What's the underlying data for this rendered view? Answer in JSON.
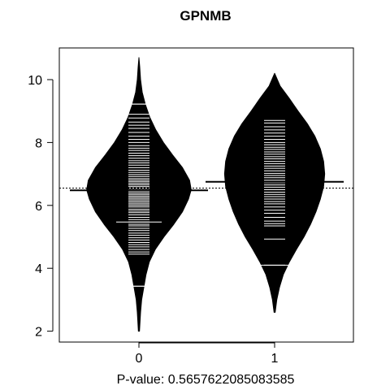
{
  "chart_data": {
    "type": "beanplot",
    "title": "GPNMB",
    "xlabel": "P-value: 0.5657622085083585",
    "ylabel": "",
    "categories": [
      "0",
      "1"
    ],
    "yticks": [
      2,
      4,
      6,
      8,
      10
    ],
    "ylim": [
      1.8,
      11.1
    ],
    "overall_mean": 6.55,
    "fill_color": "#000000",
    "line_color": "#ffffff",
    "beans": [
      {
        "group": "0",
        "mean": 6.48,
        "range": [
          2.0,
          10.7
        ],
        "density": [
          [
            2.0,
            0.01
          ],
          [
            2.6,
            0.03
          ],
          [
            3.0,
            0.05
          ],
          [
            3.4,
            0.09
          ],
          [
            3.8,
            0.13
          ],
          [
            4.2,
            0.19
          ],
          [
            4.6,
            0.3
          ],
          [
            5.0,
            0.46
          ],
          [
            5.4,
            0.64
          ],
          [
            5.8,
            0.8
          ],
          [
            6.2,
            0.91
          ],
          [
            6.5,
            0.96
          ],
          [
            6.8,
            0.93
          ],
          [
            7.2,
            0.8
          ],
          [
            7.6,
            0.62
          ],
          [
            8.0,
            0.45
          ],
          [
            8.4,
            0.31
          ],
          [
            8.8,
            0.2
          ],
          [
            9.2,
            0.12
          ],
          [
            9.6,
            0.06
          ],
          [
            10.0,
            0.03
          ],
          [
            10.4,
            0.015
          ],
          [
            10.7,
            0.0
          ]
        ],
        "observations": [
          3.43,
          4.45,
          4.52,
          4.6,
          4.68,
          4.75,
          4.82,
          4.9,
          4.97,
          5.05,
          5.12,
          5.2,
          5.27,
          5.35,
          5.4,
          5.47,
          5.55,
          5.62,
          5.7,
          5.77,
          5.82,
          5.88,
          5.95,
          6.0,
          6.05,
          6.1,
          6.15,
          6.2,
          6.25,
          6.3,
          6.35,
          6.4,
          6.45,
          6.5,
          6.55,
          6.6,
          6.65,
          6.7,
          6.75,
          6.8,
          6.85,
          6.92,
          6.98,
          7.05,
          7.12,
          7.2,
          7.28,
          7.35,
          7.42,
          7.5,
          7.58,
          7.66,
          7.75,
          7.82,
          7.9,
          8.0,
          8.1,
          8.2,
          8.32,
          8.45,
          8.55,
          8.65,
          8.78,
          8.9,
          9.22
        ],
        "long_lines": [
          3.43,
          5.47,
          9.22
        ]
      },
      {
        "group": "1",
        "mean": 6.75,
        "range": [
          2.6,
          10.2
        ],
        "density": [
          [
            2.6,
            0.01
          ],
          [
            3.0,
            0.04
          ],
          [
            3.4,
            0.09
          ],
          [
            3.8,
            0.16
          ],
          [
            4.2,
            0.27
          ],
          [
            4.6,
            0.4
          ],
          [
            5.0,
            0.54
          ],
          [
            5.4,
            0.66
          ],
          [
            5.8,
            0.76
          ],
          [
            6.2,
            0.84
          ],
          [
            6.6,
            0.9
          ],
          [
            7.0,
            0.92
          ],
          [
            7.4,
            0.9
          ],
          [
            7.8,
            0.84
          ],
          [
            8.2,
            0.74
          ],
          [
            8.6,
            0.6
          ],
          [
            9.0,
            0.43
          ],
          [
            9.4,
            0.27
          ],
          [
            9.8,
            0.1
          ],
          [
            10.2,
            0.0
          ]
        ],
        "observations": [
          4.1,
          4.93,
          5.35,
          5.42,
          5.5,
          5.62,
          5.75,
          5.85,
          5.95,
          6.05,
          6.12,
          6.2,
          6.28,
          6.35,
          6.42,
          6.5,
          6.58,
          6.65,
          6.72,
          6.8,
          6.88,
          6.95,
          7.02,
          7.1,
          7.18,
          7.25,
          7.33,
          7.4,
          7.48,
          7.55,
          7.63,
          7.7,
          7.78,
          7.85,
          7.93,
          8.0,
          8.1,
          8.2,
          8.3,
          8.4,
          8.5,
          8.62,
          8.7
        ],
        "long_lines": [
          4.1
        ]
      }
    ]
  }
}
